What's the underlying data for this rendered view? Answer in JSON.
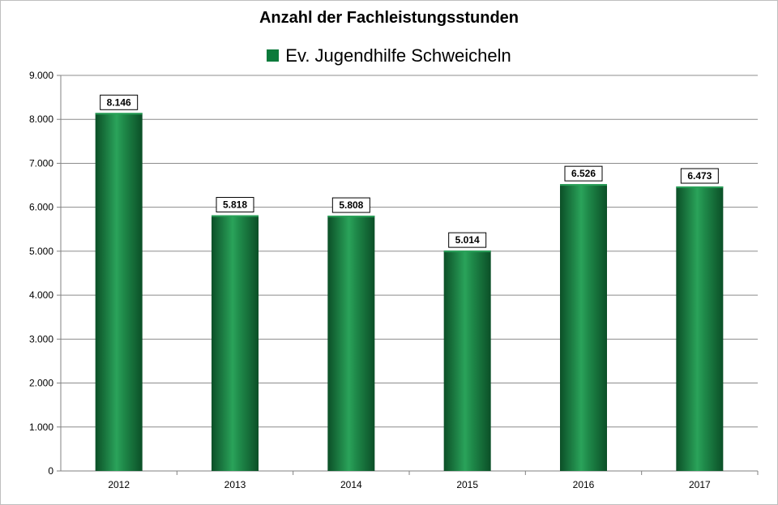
{
  "chart_data": {
    "type": "bar",
    "title": "Anzahl der Fachleistungsstunden",
    "categories": [
      "2012",
      "2013",
      "2014",
      "2015",
      "2016",
      "2017"
    ],
    "series": [
      {
        "name": "Ev. Jugendhilfe Schweicheln",
        "values": [
          8146,
          5818,
          5808,
          5014,
          6526,
          6473
        ],
        "data_labels": [
          "8.146",
          "5.818",
          "5.808",
          "5.014",
          "6.526",
          "6.473"
        ]
      }
    ],
    "y_ticks": [
      0,
      1000,
      2000,
      3000,
      4000,
      5000,
      6000,
      7000,
      8000,
      9000
    ],
    "y_tick_labels": [
      "0",
      "1.000",
      "2.000",
      "3.000",
      "4.000",
      "5.000",
      "6.000",
      "7.000",
      "8.000",
      "9.000"
    ],
    "ylim": [
      0,
      9000
    ],
    "xlabel": "",
    "ylabel": "",
    "grid": true,
    "legend_position": "top-center",
    "colors": {
      "bar_dark": "#0b4f27",
      "bar_mid": "#1f8a4a",
      "bar_light": "#2aa35a",
      "legend_swatch": "#0b7a3b",
      "grid": "#8c8c8c",
      "axis": "#808080"
    }
  }
}
